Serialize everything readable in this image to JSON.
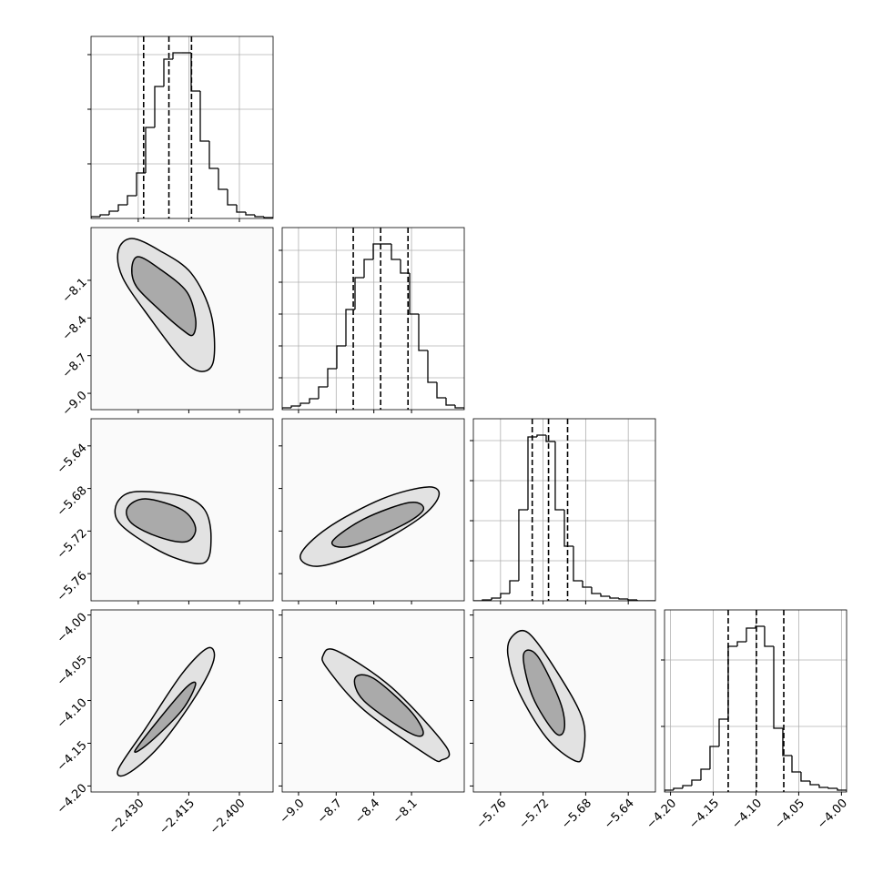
{
  "chart_data": {
    "type": "corner",
    "params": [
      {
        "xlim": [
          -2.444,
          -2.39
        ],
        "xticks": [
          {
            "value": -2.43,
            "label": "−2.430"
          },
          {
            "value": -2.415,
            "label": "−2.415"
          },
          {
            "value": -2.4,
            "label": "−2.400"
          }
        ],
        "hist": {
          "bins": [
            -2.444,
            -2.4413,
            -2.4386,
            -2.4359,
            -2.4332,
            -2.4305,
            -2.4278,
            -2.4251,
            -2.4224,
            -2.4197,
            -2.417,
            -2.4143,
            -2.4116,
            -2.4089,
            -2.4062,
            -2.4035,
            -2.4008,
            -2.3981,
            -2.3954,
            -2.3927,
            -2.39
          ],
          "values": [
            10,
            20,
            40,
            75,
            125,
            250,
            500,
            725,
            875,
            910,
            910,
            700,
            425,
            275,
            160,
            75,
            35,
            20,
            10,
            5
          ],
          "ylim": [
            0,
            1000
          ],
          "yticks": [
            300,
            600,
            900
          ]
        },
        "quantiles": [
          -2.4284,
          -2.4209,
          -2.4142
        ],
        "joint": []
      },
      {
        "xlim": [
          -9.13,
          -7.68
        ],
        "xticks": [
          {
            "value": -9.0,
            "label": "−9.0"
          },
          {
            "value": -8.7,
            "label": "−8.7"
          },
          {
            "value": -8.4,
            "label": "−8.4"
          },
          {
            "value": -8.1,
            "label": "−8.1"
          }
        ],
        "hist": {
          "bins": [
            -9.13,
            -9.0575,
            -8.985,
            -8.9125,
            -8.84,
            -8.7675,
            -8.695,
            -8.6225,
            -8.55,
            -8.4775,
            -8.405,
            -8.3325,
            -8.26,
            -8.1875,
            -8.115,
            -8.0425,
            -7.97,
            -7.8975,
            -7.825,
            -7.7525,
            -7.68
          ],
          "values": [
            10,
            20,
            35,
            60,
            125,
            225,
            350,
            550,
            725,
            825,
            910,
            910,
            825,
            750,
            525,
            325,
            150,
            65,
            25,
            10
          ],
          "ylim": [
            0,
            1000
          ],
          "yticks": [
            175,
            350,
            525,
            700,
            875
          ]
        },
        "quantiles": [
          -8.564,
          -8.346,
          -8.128
        ],
        "joint": [
          [
            {
              "x": [
                -2.4359,
                -2.4319,
                -2.4238,
                -2.4143,
                -2.4084,
                -2.4076,
                -2.4111,
                -2.417,
                -2.4264,
                -2.4346
              ],
              "y": [
                -7.861,
                -7.767,
                -7.861,
                -8.043,
                -8.369,
                -8.731,
                -8.826,
                -8.731,
                -8.405,
                -8.079
              ]
            },
            {
              "x": [
                -2.4319,
                -2.43,
                -2.4238,
                -2.4157,
                -2.413,
                -2.4138,
                -2.417,
                -2.4238,
                -2.4305
              ],
              "y": [
                -8.006,
                -7.912,
                -8.006,
                -8.188,
                -8.405,
                -8.536,
                -8.492,
                -8.333,
                -8.151
              ]
            }
          ]
        ]
      },
      {
        "xlim": [
          -5.7855,
          -5.6145
        ],
        "xticks": [
          {
            "value": -5.76,
            "label": "−5.76"
          },
          {
            "value": -5.72,
            "label": "−5.72"
          },
          {
            "value": -5.68,
            "label": "−5.68"
          },
          {
            "value": -5.64,
            "label": "−5.64"
          }
        ],
        "hist": {
          "bins": [
            -5.7855,
            -5.777,
            -5.7684,
            -5.7599,
            -5.7513,
            -5.7428,
            -5.7342,
            -5.7257,
            -5.7171,
            -5.7086,
            -5.7,
            -5.6915,
            -5.6829,
            -5.6744,
            -5.6658,
            -5.6573,
            -5.6487,
            -5.6402,
            -5.6316,
            -5.6231,
            -5.6145
          ],
          "values": [
            0,
            5,
            15,
            40,
            110,
            500,
            900,
            910,
            875,
            500,
            300,
            110,
            75,
            40,
            25,
            15,
            10,
            5,
            0,
            0
          ],
          "ylim": [
            0,
            1000
          ],
          "yticks": [
            220,
            440,
            660,
            880
          ]
        },
        "quantiles": [
          -5.7302,
          -5.7149,
          -5.697
        ],
        "joint": [
          [
            {
              "x": [
                -2.4359,
                -2.4305,
                -2.417,
                -2.4103,
                -2.4084,
                -2.4103,
                -2.4197,
                -2.4305,
                -2.4364
              ],
              "y": [
                -5.6915,
                -5.6829,
                -5.6872,
                -5.7,
                -5.7257,
                -5.7496,
                -5.7445,
                -5.7257,
                -5.7086
              ]
            },
            {
              "x": [
                -2.4332,
                -2.4278,
                -2.417,
                -2.413,
                -2.4157,
                -2.4238,
                -2.4319
              ],
              "y": [
                -5.6983,
                -5.6897,
                -5.7,
                -5.7171,
                -5.7299,
                -5.7257,
                -5.7128
              ]
            }
          ],
          [
            {
              "x": [
                -8.985,
                -8.768,
                -8.333,
                -7.97,
                -7.883,
                -8.043,
                -8.478,
                -8.84
              ],
              "y": [
                -5.7428,
                -5.7171,
                -5.6897,
                -5.6786,
                -5.6872,
                -5.7086,
                -5.7385,
                -5.753
              ]
            },
            {
              "x": [
                -8.731,
                -8.478,
                -8.115,
                -8.006,
                -8.188,
                -8.586
              ],
              "y": [
                -5.7299,
                -5.7086,
                -5.6932,
                -5.7,
                -5.7154,
                -5.7342
              ]
            }
          ]
        ]
      },
      {
        "xlim": [
          -4.207,
          -3.994
        ],
        "xticks": [
          {
            "value": -4.2,
            "label": "−4.20"
          },
          {
            "value": -4.15,
            "label": "−4.15"
          },
          {
            "value": -4.1,
            "label": "−4.10"
          },
          {
            "value": -4.05,
            "label": "−4.05"
          },
          {
            "value": -4.0,
            "label": "−4.00"
          }
        ],
        "hist": {
          "bins": [
            -4.207,
            -4.1964,
            -4.1857,
            -4.1751,
            -4.1644,
            -4.1538,
            -4.1431,
            -4.1325,
            -4.1218,
            -4.1112,
            -4.1005,
            -4.0899,
            -4.0792,
            -4.0686,
            -4.0579,
            -4.0473,
            -4.0366,
            -4.026,
            -4.0153,
            -4.0047,
            -3.994
          ],
          "values": [
            10,
            20,
            35,
            65,
            125,
            250,
            400,
            800,
            825,
            900,
            910,
            800,
            350,
            200,
            110,
            60,
            40,
            25,
            20,
            10
          ],
          "ylim": [
            0,
            1000
          ],
          "yticks": [
            360,
            725
          ]
        },
        "quantiles": [
          -4.1325,
          -4.0995,
          -4.0675
        ],
        "joint": [
          [
            {
              "x": [
                -2.4359,
                -2.4278,
                -2.417,
                -2.4094,
                -2.4076,
                -2.413,
                -2.4238,
                -2.4332
              ],
              "y": [
                -4.1804,
                -4.1325,
                -4.0686,
                -4.0387,
                -4.0526,
                -4.0952,
                -4.1538,
                -4.1857
              ]
            },
            {
              "x": [
                -2.431,
                -2.4238,
                -2.4157,
                -2.413,
                -2.417,
                -2.4264
              ],
              "y": [
                -4.1591,
                -4.1218,
                -4.0845,
                -4.0813,
                -4.1112,
                -4.1484
              ]
            }
          ],
          [
            {
              "x": [
                -8.804,
                -8.695,
                -8.26,
                -7.825,
                -7.861,
                -7.97,
                -8.478,
                -8.768
              ],
              "y": [
                -4.0473,
                -4.0419,
                -4.0845,
                -4.1538,
                -4.1697,
                -4.1644,
                -4.1112,
                -4.0632
              ]
            },
            {
              "x": [
                -8.55,
                -8.405,
                -8.115,
                -8.006,
                -8.115,
                -8.478
              ],
              "y": [
                -4.0739,
                -4.0739,
                -4.1112,
                -4.1378,
                -4.1378,
                -4.1005
              ]
            }
          ],
          [
            {
              "x": [
                -5.7496,
                -5.7342,
                -5.7086,
                -5.6829,
                -5.6829,
                -5.6915,
                -5.7171,
                -5.7428,
                -5.753
              ],
              "y": [
                -4.0259,
                -4.0206,
                -4.0632,
                -4.1218,
                -4.1644,
                -4.1697,
                -4.1431,
                -4.0899,
                -4.0473
              ]
            },
            {
              "x": [
                -5.7385,
                -5.7257,
                -5.7043,
                -5.7,
                -5.7086,
                -5.7299
              ],
              "y": [
                -4.0473,
                -4.0473,
                -4.1005,
                -4.1325,
                -4.1378,
                -4.0952
              ]
            }
          ]
        ]
      }
    ]
  }
}
